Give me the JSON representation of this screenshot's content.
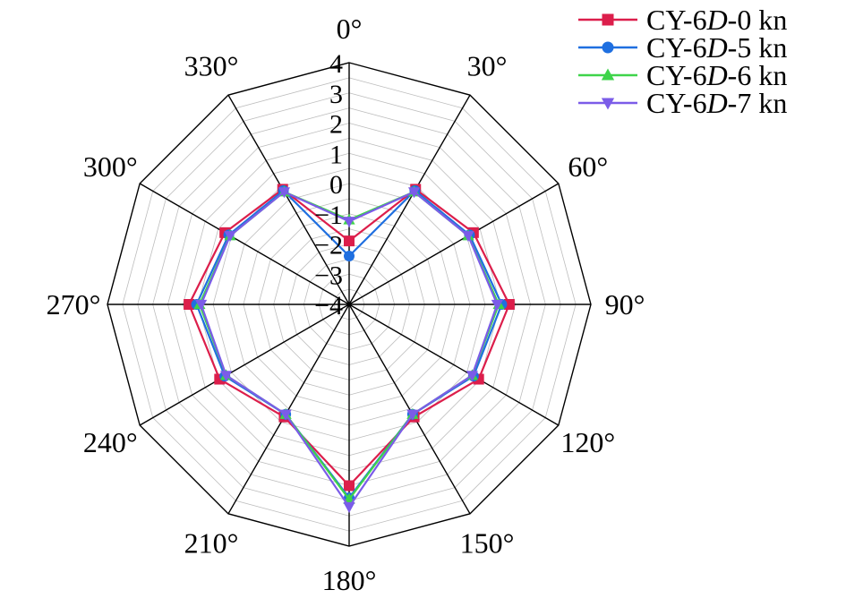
{
  "chart_data": {
    "type": "radar",
    "angle_labels": [
      "0°",
      "30°",
      "60°",
      "90°",
      "120°",
      "150°",
      "180°",
      "210°",
      "240°",
      "270°",
      "300°",
      "330°"
    ],
    "angles_deg": [
      0,
      30,
      60,
      90,
      120,
      150,
      180,
      210,
      240,
      270,
      300,
      330
    ],
    "radial_ticks": [
      "4",
      "3",
      "2",
      "1",
      "0",
      "−1",
      "−2",
      "−3",
      "−4"
    ],
    "radial_tick_values": [
      4,
      3,
      2,
      1,
      0,
      -1,
      -2,
      -3,
      -4
    ],
    "rlim": [
      -4,
      4
    ],
    "grid": true,
    "legend_position": "top-right",
    "series": [
      {
        "name": "CY-6D-0 kn",
        "legend_parts": [
          "CY-6",
          "D",
          "-0 kn"
        ],
        "color": "#dc1e4b",
        "marker": "square",
        "values": [
          -1.9,
          0.4,
          0.75,
          1.3,
          0.95,
          0.3,
          2.0,
          0.3,
          0.95,
          1.3,
          0.75,
          0.4
        ]
      },
      {
        "name": "CY-6D-5 kn",
        "legend_parts": [
          "CY-6",
          "D",
          "-5 kn"
        ],
        "color": "#1f6fe0",
        "marker": "circle",
        "values": [
          -2.4,
          0.35,
          0.6,
          1.05,
          0.75,
          0.2,
          2.4,
          0.2,
          0.75,
          1.05,
          0.6,
          0.35
        ]
      },
      {
        "name": "CY-6D-6 kn",
        "legend_parts": [
          "CY-6",
          "D",
          "-6 kn"
        ],
        "color": "#3ed44a",
        "marker": "triangle-up",
        "values": [
          -1.2,
          0.3,
          0.55,
          0.95,
          0.7,
          0.2,
          2.45,
          0.2,
          0.7,
          0.95,
          0.55,
          0.3
        ]
      },
      {
        "name": "CY-6D-7 kn",
        "legend_parts": [
          "CY-6",
          "D",
          "-7 kn"
        ],
        "color": "#7b5ce8",
        "marker": "triangle-down",
        "values": [
          -1.25,
          0.3,
          0.55,
          0.9,
          0.7,
          0.2,
          2.7,
          0.2,
          0.7,
          0.9,
          0.55,
          0.3
        ]
      }
    ]
  }
}
